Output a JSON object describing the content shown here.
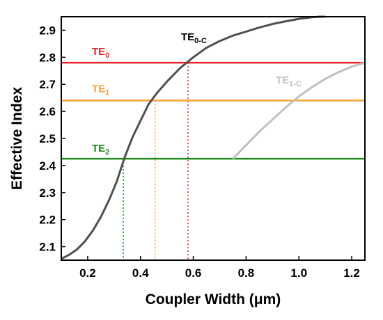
{
  "chart_data": {
    "type": "line",
    "xlabel": "Coupler Width (μm)",
    "ylabel": "Effective Index",
    "xlim": [
      0.1,
      1.25
    ],
    "ylim": [
      2.05,
      2.95
    ],
    "xticks": [
      0.2,
      0.4,
      0.6,
      0.8,
      1.0,
      1.2
    ],
    "xtick_labels": [
      "0.2",
      "0.4",
      "0.6",
      "0.8",
      "1.0",
      "1.2"
    ],
    "yticks": [
      2.1,
      2.2,
      2.3,
      2.4,
      2.5,
      2.6,
      2.7,
      2.8,
      2.9
    ],
    "ytick_labels": [
      "2.1",
      "2.2",
      "2.3",
      "2.4",
      "2.5",
      "2.6",
      "2.7",
      "2.8",
      "2.9"
    ],
    "grid": false,
    "horizontal_lines": [
      {
        "name": "TE0",
        "label_main": "TE",
        "label_sub": "0",
        "y": 2.78,
        "color": "#e8262b"
      },
      {
        "name": "TE1",
        "label_main": "TE",
        "label_sub": "1",
        "y": 2.64,
        "color": "#f7a035"
      },
      {
        "name": "TE2",
        "label_main": "TE",
        "label_sub": "2",
        "y": 2.425,
        "color": "#1a8a1a"
      }
    ],
    "series": [
      {
        "name": "TE0-C",
        "label_main": "TE",
        "label_sub": "0-C",
        "color": "#505050",
        "x": [
          0.1,
          0.13,
          0.16,
          0.19,
          0.22,
          0.25,
          0.28,
          0.31,
          0.34,
          0.37,
          0.4,
          0.43,
          0.46,
          0.5,
          0.55,
          0.6,
          0.65,
          0.7,
          0.75,
          0.8,
          0.85,
          0.9,
          0.95,
          1.0,
          1.05,
          1.08,
          1.1
        ],
        "y": [
          2.055,
          2.07,
          2.09,
          2.12,
          2.16,
          2.21,
          2.27,
          2.34,
          2.43,
          2.505,
          2.565,
          2.625,
          2.665,
          2.71,
          2.76,
          2.8,
          2.835,
          2.86,
          2.88,
          2.895,
          2.91,
          2.923,
          2.933,
          2.942,
          2.948,
          2.95,
          2.95
        ]
      },
      {
        "name": "TE1-C",
        "label_main": "TE",
        "label_sub": "1-C",
        "color": "#c0c0c0",
        "x": [
          0.75,
          0.8,
          0.85,
          0.9,
          0.95,
          1.0,
          1.05,
          1.1,
          1.15,
          1.2,
          1.25
        ],
        "y": [
          2.425,
          2.475,
          2.525,
          2.57,
          2.615,
          2.655,
          2.69,
          2.72,
          2.745,
          2.765,
          2.78
        ]
      }
    ],
    "intersections": [
      {
        "x": 0.335,
        "y": 2.425,
        "color": "#1a8a1a"
      },
      {
        "x": 0.455,
        "y": 2.64,
        "color": "#f7a035"
      },
      {
        "x": 0.58,
        "y": 2.78,
        "color": "#e8262b"
      }
    ]
  }
}
